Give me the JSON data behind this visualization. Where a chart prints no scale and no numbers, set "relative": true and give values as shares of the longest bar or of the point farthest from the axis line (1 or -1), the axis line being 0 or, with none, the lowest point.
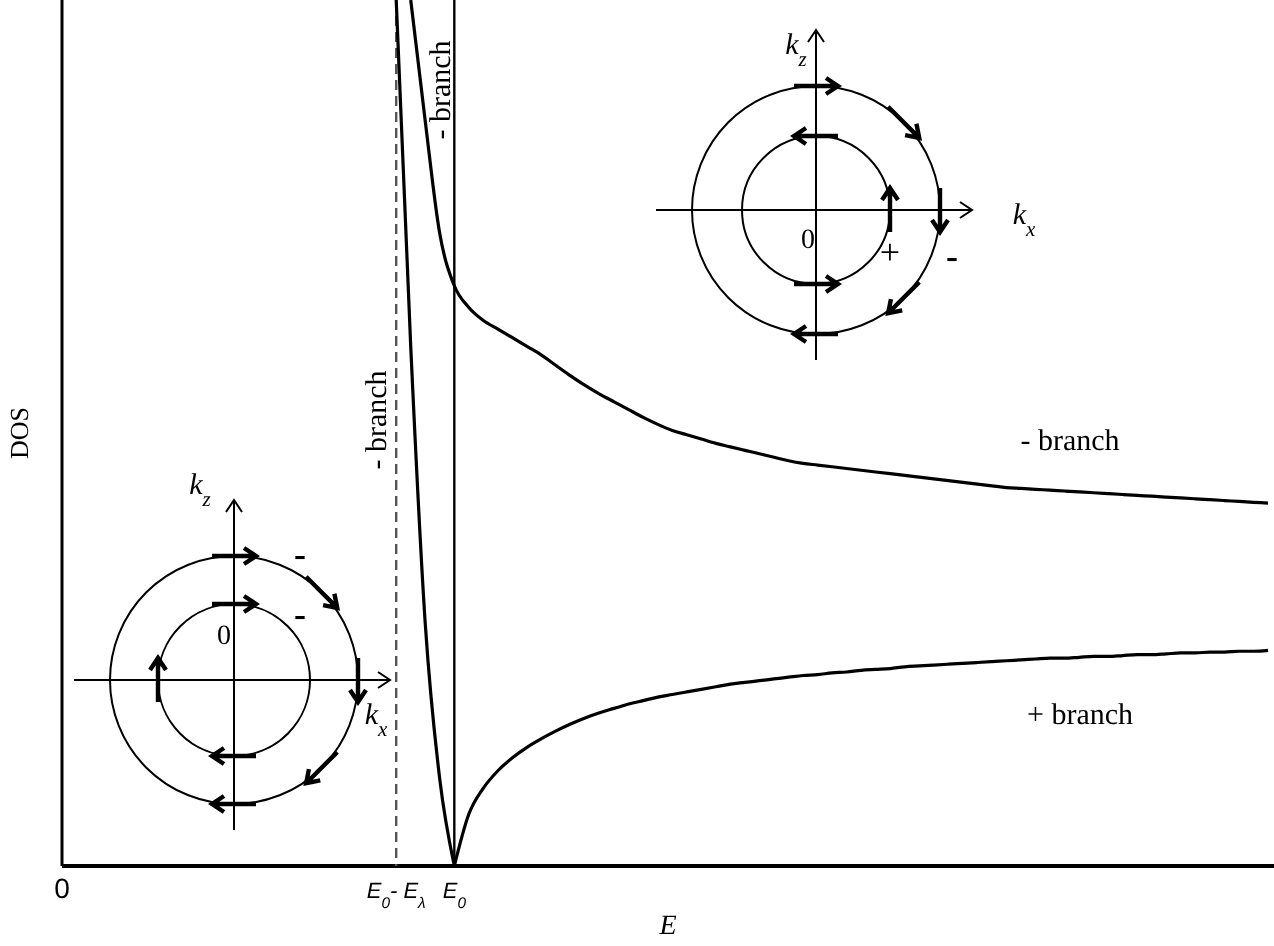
{
  "chart_data": {
    "type": "line",
    "relative": true,
    "xlabel": "E",
    "ylabel": "DOS",
    "categories": [
      "0",
      null,
      null,
      null,
      null,
      null,
      null,
      null,
      null,
      null,
      null,
      null,
      null,
      null,
      null,
      null,
      null,
      null,
      null,
      null,
      null,
      null,
      null,
      "E$_{0}$- E$_{λ}$",
      null,
      null,
      null,
      "E$_{0}$",
      null,
      null,
      null,
      null,
      null,
      null,
      null,
      null,
      null,
      null,
      null,
      null,
      null,
      null,
      null,
      null,
      null,
      null,
      null,
      null,
      null,
      null,
      null,
      null,
      null,
      null,
      null,
      null,
      null,
      null,
      null,
      null,
      null,
      null,
      null,
      null,
      null,
      null,
      null,
      null,
      null,
      null,
      null,
      null,
      null,
      null,
      null,
      null,
      null,
      null,
      null,
      null,
      null,
      null,
      null,
      null
    ],
    "series": [
      {
        "color": "#000000",
        "values": [
          null,
          null,
          null,
          null,
          null,
          null,
          null,
          null,
          null,
          null,
          null,
          null,
          null,
          null,
          null,
          null,
          null,
          null,
          null,
          null,
          null,
          null,
          null,
          1,
          0.6,
          0.28,
          0.1,
          0,
          null,
          null,
          null,
          null,
          null,
          null,
          null,
          null,
          null,
          null,
          null,
          null,
          null,
          null,
          null,
          null,
          null,
          null,
          null,
          null,
          null,
          null,
          null,
          null,
          null,
          null,
          null,
          null,
          null,
          null,
          null,
          null,
          null,
          null,
          null,
          null,
          null,
          null,
          null,
          null,
          null,
          null,
          null,
          null,
          null,
          null,
          null,
          null,
          null,
          null,
          null,
          null,
          null,
          null,
          null,
          null
        ]
      },
      {
        "color": "#000000",
        "values": [
          null,
          null,
          null,
          null,
          null,
          null,
          null,
          null,
          null,
          null,
          null,
          null,
          null,
          null,
          null,
          null,
          null,
          null,
          null,
          null,
          null,
          null,
          null,
          null,
          1,
          0.86,
          0.73,
          0.67,
          0.645,
          0.63,
          0.62,
          0.61,
          0.6,
          0.59,
          0.578,
          0.566,
          0.555,
          0.545,
          0.536,
          0.527,
          0.518,
          0.51,
          0.503,
          0.498,
          0.493,
          0.488,
          0.484,
          0.48,
          0.476,
          0.472,
          0.468,
          0.465,
          0.463,
          0.461,
          0.459,
          0.457,
          0.455,
          0.453,
          0.451,
          0.449,
          0.447,
          0.445,
          0.443,
          0.441,
          0.439,
          0.437,
          0.436,
          0.435,
          0.434,
          0.433,
          0.432,
          0.431,
          0.43,
          0.429,
          0.428,
          0.427,
          0.426,
          0.425,
          0.424,
          0.423,
          0.422,
          0.421,
          0.42,
          0.419
        ]
      },
      {
        "color": "#000000",
        "values": [
          null,
          null,
          null,
          null,
          null,
          null,
          null,
          null,
          null,
          null,
          null,
          null,
          null,
          null,
          null,
          null,
          null,
          null,
          null,
          null,
          null,
          null,
          null,
          null,
          null,
          null,
          null,
          0,
          0.06,
          0.09,
          0.11,
          0.125,
          0.137,
          0.147,
          0.156,
          0.164,
          0.171,
          0.177,
          0.182,
          0.187,
          0.191,
          0.195,
          0.198,
          0.201,
          0.204,
          0.207,
          0.21,
          0.212,
          0.214,
          0.216,
          0.218,
          0.22,
          0.221,
          0.223,
          0.224,
          0.226,
          0.227,
          0.228,
          0.23,
          0.231,
          0.232,
          0.233,
          0.234,
          0.235,
          0.236,
          0.237,
          0.238,
          0.239,
          0.24,
          0.24,
          0.241,
          0.242,
          0.242,
          0.243,
          0.244,
          0.244,
          0.245,
          0.246,
          0.246,
          0.247,
          0.247,
          0.248,
          0.248,
          0.249
        ]
      }
    ],
    "ref_lines": [
      {
        "axis": "x",
        "value": "E$_{0}$- E$_{λ}$",
        "line_style": "dashed",
        "color": "#555555"
      },
      {
        "axis": "x",
        "value": "E$_{0}$",
        "line_style": "solid",
        "color": "#000000"
      }
    ],
    "annotations": [
      "- branch",
      "- branch",
      "- branch",
      "+ branch",
      "k$_{z}$",
      "k$_{x}$",
      "0",
      "-",
      "-",
      "k$_{z}$",
      "k$_{x}$",
      "0",
      "+",
      "-"
    ]
  }
}
